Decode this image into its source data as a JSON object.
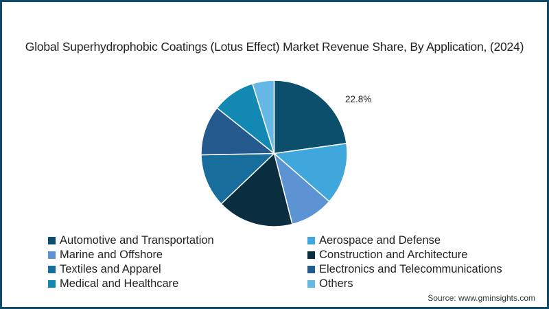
{
  "title": "Global Superhydrophobic Coatings (Lotus Effect) Market Revenue Share, By Application,  (2024)",
  "source": "Source: www.gminsights.com",
  "chart_data": {
    "type": "pie",
    "title": "Global Superhydrophobic Coatings (Lotus Effect) Market Revenue Share, By Application,  (2024)",
    "categories": [
      "Automotive and Transportation",
      "Aerospace and Defense",
      "Marine and Offshore",
      "Construction and Architecture",
      "Textiles and Apparel",
      "Electronics and Telecommunications",
      "Medical and Healthcare",
      "Others"
    ],
    "values": [
      22.8,
      13.6,
      9.6,
      16.9,
      11.8,
      11.0,
      9.5,
      4.8
    ],
    "colors": [
      "#0b4f6c",
      "#3fa7dc",
      "#5b93d3",
      "#0a2d40",
      "#176d9c",
      "#245a8e",
      "#1289b3",
      "#65b8e6"
    ],
    "data_labels": [
      {
        "category": "Automotive and Transportation",
        "text": "22.8%"
      }
    ],
    "start_angle": "12 o'clock, clockwise",
    "legend_position": "bottom, two columns",
    "unit": "%"
  },
  "legend": [
    {
      "label": "Automotive and Transportation",
      "color": "#0b4f6c"
    },
    {
      "label": "Aerospace and Defense",
      "color": "#3fa7dc"
    },
    {
      "label": "Marine and Offshore",
      "color": "#5b93d3"
    },
    {
      "label": "Construction and Architecture",
      "color": "#0a2d40"
    },
    {
      "label": "Textiles and Apparel",
      "color": "#176d9c"
    },
    {
      "label": "Electronics and Telecommunications",
      "color": "#245a8e"
    },
    {
      "label": "Medical and Healthcare",
      "color": "#1289b3"
    },
    {
      "label": "Others",
      "color": "#65b8e6"
    }
  ]
}
